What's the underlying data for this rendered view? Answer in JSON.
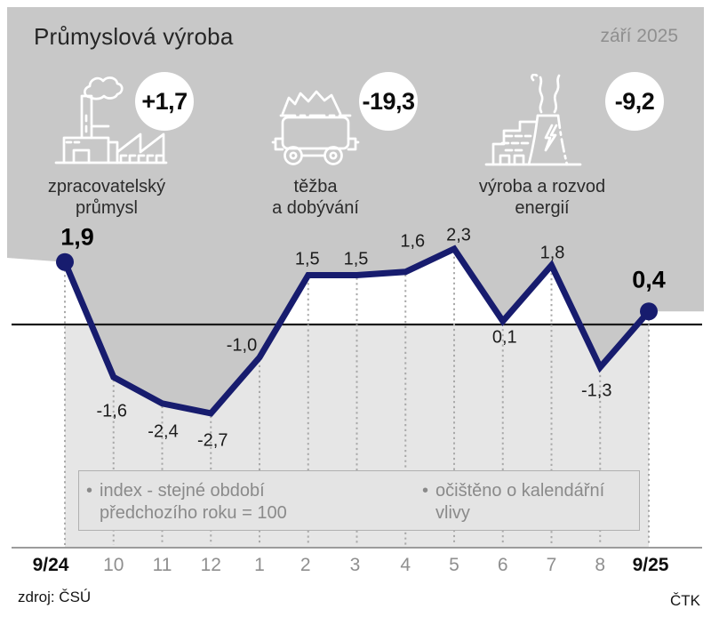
{
  "header": {
    "title": "Průmyslová výroba",
    "date": "září 2025"
  },
  "indicators": [
    {
      "icon": "factory-icon",
      "value": "+1,7",
      "label_line1": "zpracovatelský",
      "label_line2": "průmysl"
    },
    {
      "icon": "mining-cart-icon",
      "value": "-19,3",
      "label_line1": "těžba",
      "label_line2": "a dobývání"
    },
    {
      "icon": "power-plant-icon",
      "value": "-9,2",
      "label_line1": "výroba a rozvod",
      "label_line2": "energií"
    }
  ],
  "chart_data": {
    "type": "line",
    "categories": [
      "9/24",
      "10",
      "11",
      "12",
      "1",
      "2",
      "3",
      "4",
      "5",
      "6",
      "7",
      "8",
      "9/25"
    ],
    "values": [
      1.9,
      -1.6,
      -2.4,
      -2.7,
      -1.0,
      1.5,
      1.5,
      1.6,
      2.3,
      0.1,
      1.8,
      -1.3,
      0.4
    ],
    "point_labels": [
      "1,9",
      "-1,6",
      "-2,4",
      "-2,7",
      "-1,0",
      "1,5",
      "1,5",
      "1,6",
      "2,3",
      "0,1",
      "1,8",
      "-1,3",
      "0,4"
    ],
    "emphasized_points": [
      0,
      12
    ],
    "zero_baseline": 0,
    "grid": "dotted-vertical-per-point",
    "legend_position": "none",
    "line_color": "#171c6e",
    "ylim": [
      -3.5,
      3.0
    ]
  },
  "footnotes": {
    "bullet": "•",
    "items": [
      {
        "line1": "index - stejné období",
        "line2": "předchozího roku = 100"
      },
      {
        "line1": "očištěno o kalendářní",
        "line2": "vlivy"
      }
    ]
  },
  "sources": {
    "left": "zdroj: ČSÚ",
    "right": "ČTK"
  },
  "colors": {
    "header_bg": "#c8c8c8",
    "below_zero_bg": "#e6e6e6",
    "note_box_bg": "#e4e4e4",
    "line": "#171c6e",
    "muted_text": "#8f8f8f"
  }
}
